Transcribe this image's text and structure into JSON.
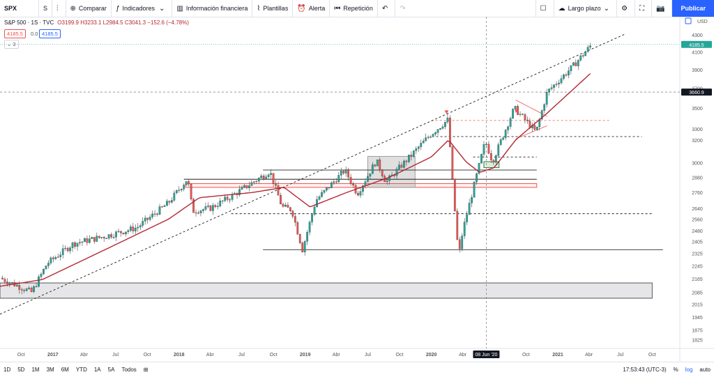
{
  "toolbar": {
    "symbol": "SPX",
    "interval": "S",
    "compare": "Comparar",
    "indicators": "Indicadores",
    "financials": "Información financiera",
    "templates": "Plantillas",
    "alert": "Alerta",
    "replay": "Repetición",
    "layout": "Largo plazo",
    "publish": "Publicar"
  },
  "legend": {
    "title": "S&P 500 · 1S · TVC",
    "ohlc": "O3199.9 H3233.1 L2984.5 C3041.3 −152.6 (−4.78%)",
    "price_red": "4185.5",
    "price_zero": "0.0",
    "price_blue": "4185.5",
    "indicator_count": "3"
  },
  "colors": {
    "up": "#26a69a",
    "down": "#ef5350",
    "ma": "#b22833",
    "accent": "#2962ff",
    "last_price": "#26a69a"
  },
  "chart_data": {
    "type": "candlestick",
    "currency": "USD",
    "y_scale": "log",
    "ylim": [
      1780,
      4420
    ],
    "price_ticks": [
      4300,
      4100,
      3900,
      3700,
      3500,
      3300,
      3200,
      3000,
      2880,
      2760,
      2640,
      2560,
      2480,
      2405,
      2325,
      2245,
      2165,
      2085,
      2015,
      1945,
      1875,
      1825
    ],
    "x_ticks": [
      "Oct",
      "2017",
      "Abr",
      "Jul",
      "Oct",
      "2018",
      "Abr",
      "Jul",
      "Oct",
      "2019",
      "Abr",
      "Jul",
      "Oct",
      "2020",
      "Abr",
      "Jul",
      "Oct",
      "2021",
      "Abr",
      "Jul",
      "Oct"
    ],
    "x_tick_dates": [
      "2016-10-01",
      "2017-01-01",
      "2017-04-01",
      "2017-07-01",
      "2017-10-01",
      "2018-01-01",
      "2018-04-01",
      "2018-07-01",
      "2018-10-01",
      "2019-01-01",
      "2019-04-01",
      "2019-07-01",
      "2019-10-01",
      "2020-01-01",
      "2020-04-01",
      "2020-07-01",
      "2020-10-01",
      "2021-01-01",
      "2021-04-01",
      "2021-07-01",
      "2021-10-01"
    ],
    "last_price": 4185.5,
    "crosshair_price": 3660.9,
    "crosshair_date": "08 Jun '20",
    "close_path": [
      [
        "2016-08-01",
        2170
      ],
      [
        "2016-11-01",
        2085
      ],
      [
        "2016-12-15",
        2260
      ],
      [
        "2017-03-01",
        2390
      ],
      [
        "2017-06-01",
        2440
      ],
      [
        "2017-09-01",
        2500
      ],
      [
        "2017-12-01",
        2680
      ],
      [
        "2018-01-26",
        2870
      ],
      [
        "2018-02-09",
        2620
      ],
      [
        "2018-04-01",
        2640
      ],
      [
        "2018-06-01",
        2730
      ],
      [
        "2018-09-21",
        2930
      ],
      [
        "2018-10-26",
        2650
      ],
      [
        "2018-11-23",
        2630
      ],
      [
        "2018-12-24",
        2350
      ],
      [
        "2019-02-01",
        2700
      ],
      [
        "2019-04-26",
        2940
      ],
      [
        "2019-06-01",
        2750
      ],
      [
        "2019-07-26",
        3020
      ],
      [
        "2019-08-23",
        2840
      ],
      [
        "2019-10-01",
        2960
      ],
      [
        "2019-12-27",
        3240
      ],
      [
        "2020-02-19",
        3390
      ],
      [
        "2020-02-28",
        2950
      ],
      [
        "2020-03-20",
        2300
      ],
      [
        "2020-04-01",
        2480
      ],
      [
        "2020-06-05",
        3190
      ],
      [
        "2020-06-26",
        3010
      ],
      [
        "2020-08-28",
        3500
      ],
      [
        "2020-10-30",
        3270
      ],
      [
        "2020-12-01",
        3660
      ],
      [
        "2021-02-12",
        3930
      ],
      [
        "2021-04-09",
        4185.5
      ]
    ],
    "ma_path": [
      [
        "2016-08-01",
        2120
      ],
      [
        "2016-12-01",
        2160
      ],
      [
        "2017-06-01",
        2350
      ],
      [
        "2017-12-01",
        2560
      ],
      [
        "2018-03-01",
        2720
      ],
      [
        "2018-08-01",
        2760
      ],
      [
        "2018-11-01",
        2800
      ],
      [
        "2019-01-15",
        2650
      ],
      [
        "2019-05-01",
        2760
      ],
      [
        "2019-09-01",
        2880
      ],
      [
        "2020-01-01",
        3050
      ],
      [
        "2020-02-20",
        3200
      ],
      [
        "2020-04-10",
        3010
      ],
      [
        "2020-05-20",
        2920
      ],
      [
        "2020-07-01",
        2960
      ],
      [
        "2020-09-01",
        3200
      ],
      [
        "2020-12-01",
        3450
      ],
      [
        "2021-04-09",
        3870
      ]
    ],
    "horizontal_levels": [
      {
        "price": 3230,
        "from": "2020-01-15",
        "to": "2021-09-01",
        "style": "dashed",
        "color": "#000000"
      },
      {
        "price": 3050,
        "from": "2020-05-01",
        "to": "2020-11-01",
        "style": "dashed",
        "color": "#000000"
      },
      {
        "price": 2940,
        "from": "2018-09-01",
        "to": "2020-11-01",
        "style": "solid",
        "color": "#000000"
      },
      {
        "price": 2865,
        "from": "2018-01-15",
        "to": "2020-11-01",
        "style": "solid",
        "color": "#000000"
      },
      {
        "price": 2600,
        "from": "2018-06-01",
        "to": "2021-10-01",
        "style": "dashed",
        "color": "#000000"
      },
      {
        "price": 2350,
        "from": "2018-09-01",
        "to": "2021-11-01",
        "style": "solid",
        "color": "#000000"
      },
      {
        "price": 3380,
        "from": "2020-01-01",
        "to": "2021-06-01",
        "style": "dashed",
        "color": "#ef5350"
      }
    ],
    "zones": [
      {
        "from": "2018-01-20",
        "to": "2020-11-01",
        "low": 2800,
        "high": 2830,
        "color": "#ef5350",
        "fill": "rgba(239,83,80,0.08)"
      },
      {
        "from": "2019-07-01",
        "to": "2019-11-15",
        "low": 2800,
        "high": 3055,
        "color": "#9e9e9e",
        "fill": "rgba(128,128,128,0.25)"
      },
      {
        "from": "2020-06-01",
        "to": "2020-07-15",
        "low": 2960,
        "high": 3010,
        "color": "#2e7d32",
        "fill": "rgba(46,125,50,0.15)"
      },
      {
        "from": "2016-08-01",
        "to": "2021-10-01",
        "low": 2050,
        "high": 2140,
        "color": "#555555",
        "fill": "rgba(200,200,205,0.45)"
      }
    ],
    "trendlines": [
      {
        "from": [
          "2016-08-01",
          1960
        ],
        "to": [
          "2021-07-15",
          4310
        ],
        "style": "dashed",
        "color": "#000000"
      }
    ],
    "triangle": [
      {
        "from": [
          "2020-09-01",
          3580
        ],
        "to": [
          "2020-12-01",
          3420
        ],
        "color": "#ef5350"
      },
      {
        "from": [
          "2020-09-01",
          3210
        ],
        "to": [
          "2020-12-01",
          3330
        ],
        "color": "#ef5350"
      }
    ],
    "arrows": [
      {
        "date": "2020-02-14",
        "price": 3430
      },
      {
        "date": "2020-09-04",
        "price": 3440
      }
    ]
  },
  "time_axis": {
    "clock": "17:53:43 (UTC-3)",
    "periods": [
      "1D",
      "5D",
      "1M",
      "3M",
      "6M",
      "YTD",
      "1A",
      "5A",
      "Todos"
    ],
    "percent": "%",
    "log": "log",
    "auto": "auto"
  }
}
